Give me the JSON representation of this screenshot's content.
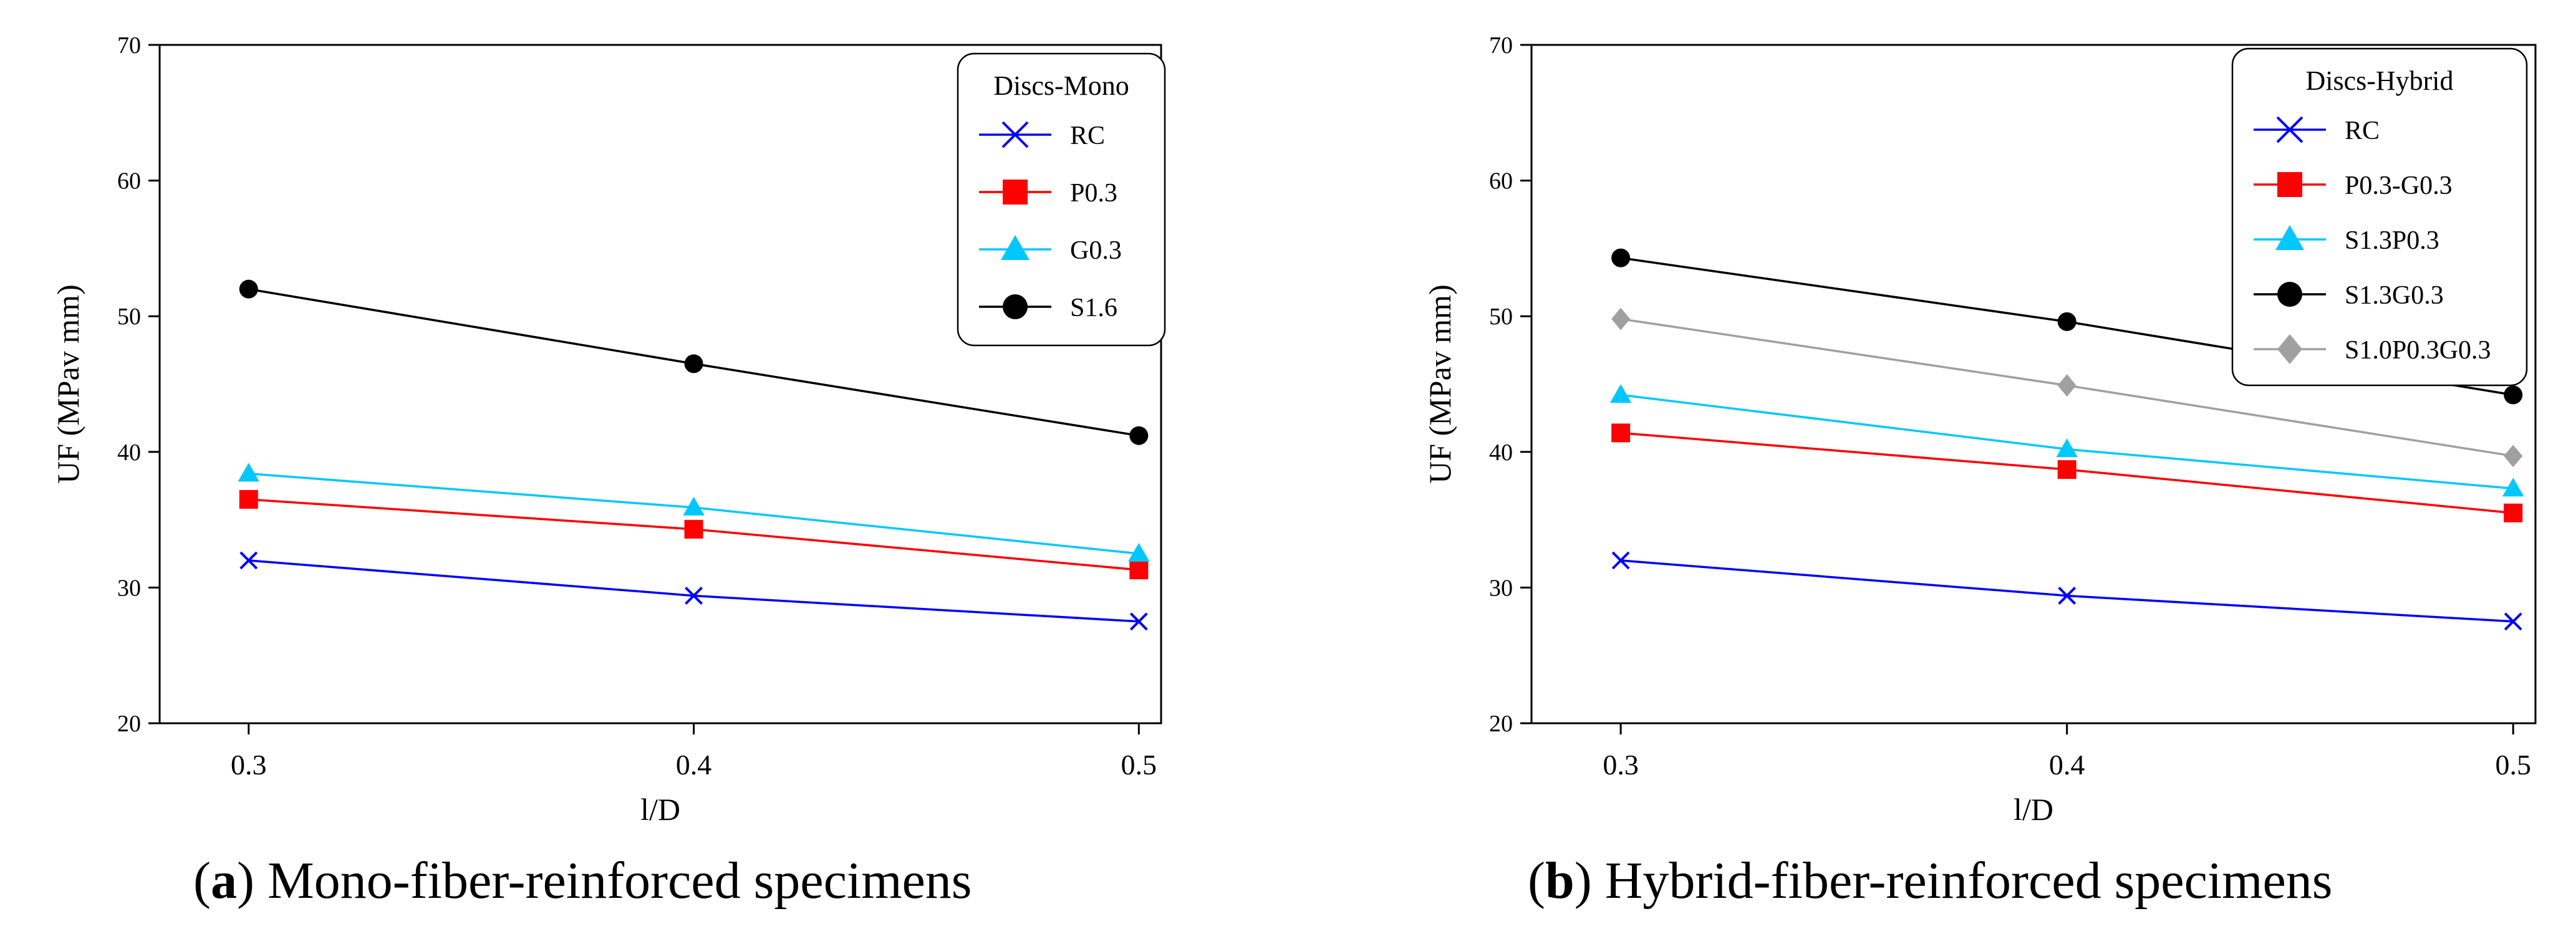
{
  "figure": {
    "panels": [
      {
        "caption_letter": "a",
        "caption_text": " Mono-fiber-reinforced specimens",
        "legend_title": "Discs-Mono"
      },
      {
        "caption_letter": "b",
        "caption_text": " Hybrid-fiber-reinforced specimens",
        "legend_title": "Discs-Hybrid"
      }
    ]
  },
  "chart_data": [
    {
      "type": "line",
      "title": "",
      "xlabel": "l/D",
      "ylabel": "UF (MPav mm)",
      "x": [
        0.3,
        0.4,
        0.5
      ],
      "x_ticks": [
        "0.3",
        "0.4",
        "0.5"
      ],
      "xlim": [
        0.28,
        0.505
      ],
      "ylim": [
        20,
        70
      ],
      "y_ticks": [
        20,
        30,
        40,
        50,
        60,
        70
      ],
      "grid": false,
      "legend_title": "Discs-Mono",
      "legend_position": "top-right",
      "series": [
        {
          "name": "RC",
          "marker": "x",
          "color": "#0000ff",
          "values": [
            32.0,
            29.4,
            27.5
          ]
        },
        {
          "name": "P0.3",
          "marker": "square",
          "color": "#ff0000",
          "values": [
            36.5,
            34.3,
            31.3
          ]
        },
        {
          "name": "G0.3",
          "marker": "triangle",
          "color": "#00c8ff",
          "values": [
            38.4,
            35.9,
            32.5
          ]
        },
        {
          "name": "S1.6",
          "marker": "circle",
          "color": "#000000",
          "values": [
            52.0,
            46.5,
            41.2
          ]
        }
      ]
    },
    {
      "type": "line",
      "title": "",
      "xlabel": "l/D",
      "ylabel": "UF (MPav mm)",
      "x": [
        0.3,
        0.4,
        0.5
      ],
      "x_ticks": [
        "0.3",
        "0.4",
        "0.5"
      ],
      "xlim": [
        0.28,
        0.505
      ],
      "ylim": [
        20,
        70
      ],
      "y_ticks": [
        20,
        30,
        40,
        50,
        60,
        70
      ],
      "grid": false,
      "legend_title": "Discs-Hybrid",
      "legend_position": "top-right",
      "series": [
        {
          "name": "RC",
          "marker": "x",
          "color": "#0000ff",
          "values": [
            32.0,
            29.4,
            27.5
          ]
        },
        {
          "name": "P0.3-G0.3",
          "marker": "square",
          "color": "#ff0000",
          "values": [
            41.4,
            38.7,
            35.5
          ]
        },
        {
          "name": "S1.3P0.3",
          "marker": "triangle",
          "color": "#00c8ff",
          "values": [
            44.2,
            40.2,
            37.3
          ]
        },
        {
          "name": "S1.3G0.3",
          "marker": "circle",
          "color": "#000000",
          "values": [
            54.3,
            49.6,
            44.2
          ]
        },
        {
          "name": "S1.0P0.3G0.3",
          "marker": "diamond",
          "color": "#a0a0a0",
          "values": [
            49.8,
            44.9,
            39.7
          ]
        }
      ]
    }
  ]
}
